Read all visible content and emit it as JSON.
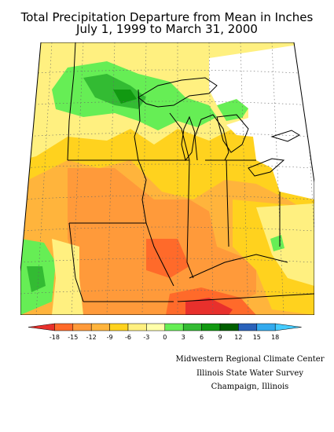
{
  "title": {
    "line1": "Total Precipitation Departure from Mean in Inches",
    "line2": "July 1, 1999 to March 31, 2000"
  },
  "legend": {
    "ticks": [
      "-18",
      "-15",
      "-12",
      "-9",
      "-6",
      "-3",
      "0",
      "3",
      "6",
      "9",
      "12",
      "15",
      "18"
    ],
    "colors": [
      "#e8302c",
      "#ff6a2a",
      "#ff9a3a",
      "#ffb43c",
      "#ffd21e",
      "#fff080",
      "#ffffaa",
      "#66ee55",
      "#33bb33",
      "#119911",
      "#005f00",
      "#2a62ba",
      "#33aaee",
      "#44ccff"
    ]
  },
  "credits": {
    "line1": "Midwestern Regional Climate Center",
    "line2": "Illinois State Water Survey",
    "line3": "Champaign, Illinois"
  }
}
